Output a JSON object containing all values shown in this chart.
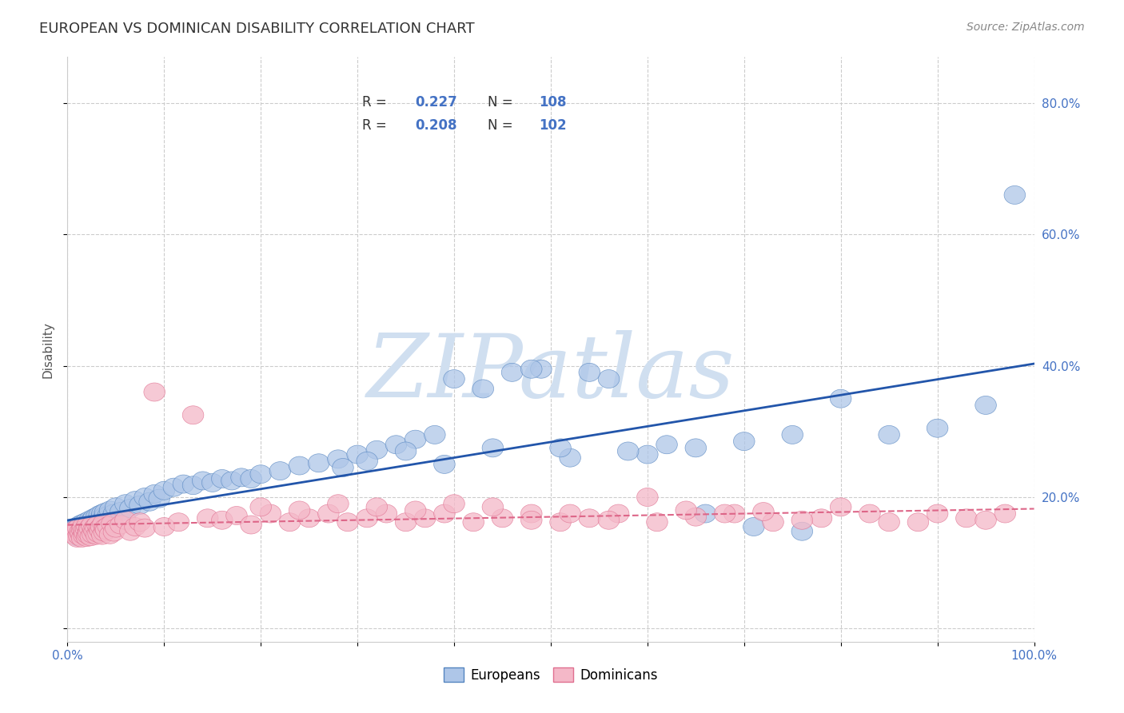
{
  "title": "EUROPEAN VS DOMINICAN DISABILITY CORRELATION CHART",
  "source": "Source: ZipAtlas.com",
  "ylabel": "Disability",
  "xlim": [
    0.0,
    1.0
  ],
  "ylim": [
    -0.02,
    0.87
  ],
  "xticks": [
    0.0,
    0.1,
    0.2,
    0.3,
    0.4,
    0.5,
    0.6,
    0.7,
    0.8,
    0.9,
    1.0
  ],
  "xticklabels": [
    "0.0%",
    "",
    "",
    "",
    "",
    "",
    "",
    "",
    "",
    "",
    "100.0%"
  ],
  "ytick_positions": [
    0.0,
    0.2,
    0.4,
    0.6,
    0.8
  ],
  "ytick_labels": [
    "",
    "20.0%",
    "40.0%",
    "60.0%",
    "80.0%"
  ],
  "european_color": "#aec6e8",
  "dominican_color": "#f4b8c8",
  "european_edge": "#5585c0",
  "dominican_edge": "#e07090",
  "trend_european_color": "#2255aa",
  "trend_dominican_color": "#dd6688",
  "trend_dominican_dash": [
    6,
    4
  ],
  "background_color": "#ffffff",
  "grid_color": "#cccccc",
  "title_color": "#333333",
  "tick_color": "#4472c4",
  "watermark_color": "#d0dff0",
  "eu_x": [
    0.005,
    0.007,
    0.008,
    0.009,
    0.01,
    0.01,
    0.011,
    0.012,
    0.012,
    0.013,
    0.013,
    0.014,
    0.015,
    0.015,
    0.016,
    0.016,
    0.017,
    0.017,
    0.018,
    0.018,
    0.019,
    0.019,
    0.02,
    0.02,
    0.021,
    0.022,
    0.022,
    0.023,
    0.024,
    0.025,
    0.025,
    0.026,
    0.027,
    0.028,
    0.029,
    0.03,
    0.031,
    0.032,
    0.033,
    0.034,
    0.035,
    0.036,
    0.037,
    0.038,
    0.039,
    0.04,
    0.042,
    0.044,
    0.046,
    0.048,
    0.05,
    0.055,
    0.06,
    0.065,
    0.07,
    0.075,
    0.08,
    0.085,
    0.09,
    0.095,
    0.1,
    0.11,
    0.12,
    0.13,
    0.14,
    0.15,
    0.16,
    0.17,
    0.18,
    0.19,
    0.2,
    0.22,
    0.24,
    0.26,
    0.28,
    0.3,
    0.32,
    0.34,
    0.36,
    0.38,
    0.4,
    0.43,
    0.46,
    0.49,
    0.52,
    0.56,
    0.6,
    0.65,
    0.7,
    0.75,
    0.8,
    0.85,
    0.9,
    0.95,
    0.98,
    0.285,
    0.31,
    0.35,
    0.39,
    0.44,
    0.48,
    0.51,
    0.54,
    0.58,
    0.62,
    0.66,
    0.71,
    0.76
  ],
  "eu_y": [
    0.15,
    0.145,
    0.148,
    0.152,
    0.14,
    0.155,
    0.143,
    0.147,
    0.153,
    0.141,
    0.158,
    0.145,
    0.149,
    0.155,
    0.142,
    0.16,
    0.147,
    0.153,
    0.146,
    0.158,
    0.144,
    0.162,
    0.148,
    0.157,
    0.152,
    0.16,
    0.146,
    0.165,
    0.153,
    0.158,
    0.164,
    0.15,
    0.168,
    0.155,
    0.162,
    0.17,
    0.158,
    0.165,
    0.173,
    0.16,
    0.168,
    0.175,
    0.163,
    0.17,
    0.177,
    0.165,
    0.172,
    0.18,
    0.168,
    0.175,
    0.185,
    0.178,
    0.19,
    0.183,
    0.195,
    0.188,
    0.2,
    0.193,
    0.205,
    0.198,
    0.21,
    0.215,
    0.22,
    0.218,
    0.225,
    0.222,
    0.228,
    0.225,
    0.23,
    0.228,
    0.235,
    0.24,
    0.248,
    0.252,
    0.258,
    0.265,
    0.272,
    0.28,
    0.288,
    0.295,
    0.38,
    0.365,
    0.39,
    0.395,
    0.26,
    0.38,
    0.265,
    0.275,
    0.285,
    0.295,
    0.35,
    0.295,
    0.305,
    0.34,
    0.66,
    0.245,
    0.255,
    0.27,
    0.25,
    0.275,
    0.395,
    0.275,
    0.39,
    0.27,
    0.28,
    0.175,
    0.155,
    0.148
  ],
  "dom_x": [
    0.005,
    0.007,
    0.008,
    0.009,
    0.01,
    0.011,
    0.012,
    0.013,
    0.014,
    0.015,
    0.015,
    0.016,
    0.017,
    0.017,
    0.018,
    0.019,
    0.02,
    0.02,
    0.021,
    0.022,
    0.022,
    0.023,
    0.024,
    0.025,
    0.026,
    0.027,
    0.028,
    0.029,
    0.03,
    0.031,
    0.032,
    0.033,
    0.034,
    0.035,
    0.036,
    0.037,
    0.038,
    0.039,
    0.04,
    0.042,
    0.044,
    0.046,
    0.048,
    0.05,
    0.055,
    0.06,
    0.065,
    0.07,
    0.075,
    0.08,
    0.09,
    0.1,
    0.115,
    0.13,
    0.145,
    0.16,
    0.175,
    0.19,
    0.21,
    0.23,
    0.25,
    0.27,
    0.29,
    0.31,
    0.33,
    0.35,
    0.37,
    0.39,
    0.42,
    0.45,
    0.48,
    0.51,
    0.54,
    0.57,
    0.61,
    0.65,
    0.69,
    0.73,
    0.78,
    0.83,
    0.88,
    0.93,
    0.97,
    0.2,
    0.24,
    0.28,
    0.32,
    0.36,
    0.4,
    0.44,
    0.48,
    0.52,
    0.56,
    0.6,
    0.64,
    0.68,
    0.72,
    0.76,
    0.8,
    0.85,
    0.9,
    0.95
  ],
  "dom_y": [
    0.148,
    0.142,
    0.145,
    0.15,
    0.138,
    0.153,
    0.141,
    0.147,
    0.144,
    0.151,
    0.138,
    0.155,
    0.142,
    0.149,
    0.145,
    0.152,
    0.139,
    0.156,
    0.143,
    0.15,
    0.146,
    0.153,
    0.14,
    0.157,
    0.144,
    0.151,
    0.148,
    0.155,
    0.142,
    0.158,
    0.145,
    0.152,
    0.149,
    0.155,
    0.142,
    0.16,
    0.147,
    0.153,
    0.15,
    0.156,
    0.143,
    0.16,
    0.147,
    0.153,
    0.158,
    0.165,
    0.148,
    0.155,
    0.162,
    0.153,
    0.36,
    0.155,
    0.162,
    0.325,
    0.168,
    0.165,
    0.172,
    0.158,
    0.175,
    0.162,
    0.168,
    0.175,
    0.162,
    0.168,
    0.175,
    0.162,
    0.168,
    0.175,
    0.162,
    0.168,
    0.175,
    0.162,
    0.168,
    0.175,
    0.162,
    0.17,
    0.175,
    0.162,
    0.168,
    0.175,
    0.162,
    0.168,
    0.175,
    0.185,
    0.18,
    0.19,
    0.185,
    0.18,
    0.19,
    0.185,
    0.165,
    0.175,
    0.165,
    0.2,
    0.18,
    0.175,
    0.178,
    0.165,
    0.185,
    0.162,
    0.175,
    0.165
  ]
}
